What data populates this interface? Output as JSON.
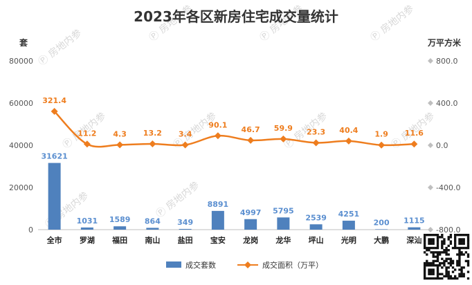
{
  "chart_data": {
    "type": "bar+line",
    "title": "2023年各区新房住宅成交量统计",
    "categories": [
      "全市",
      "罗湖",
      "福田",
      "南山",
      "盐田",
      "宝安",
      "龙岗",
      "龙华",
      "坪山",
      "光明",
      "大鹏",
      "深汕"
    ],
    "left_axis": {
      "unit": "套",
      "ylim": [
        0,
        80000
      ],
      "ticks": [
        "0",
        "20000",
        "40000",
        "60000",
        "80000"
      ]
    },
    "right_axis": {
      "unit": "万平方米",
      "ylim": [
        -800,
        800
      ],
      "ticks": [
        "-800.0",
        "-400.0",
        "0.0",
        "400.0",
        "800.0"
      ]
    },
    "series": [
      {
        "name": "成交套数",
        "type": "bar",
        "axis": "left",
        "color": "#4f81bd",
        "values": [
          31621,
          1031,
          1589,
          864,
          349,
          8891,
          4997,
          5795,
          2539,
          4251,
          200,
          1115
        ]
      },
      {
        "name": "成交面积（万平）",
        "type": "line",
        "axis": "right",
        "color": "#ee7d1e",
        "values": [
          321.4,
          11.2,
          4.3,
          13.2,
          3.4,
          90.1,
          46.7,
          59.9,
          23.3,
          40.4,
          1.9,
          11.6
        ]
      }
    ],
    "grid": false,
    "legend": "bottom-center",
    "watermark": "房地内参"
  }
}
